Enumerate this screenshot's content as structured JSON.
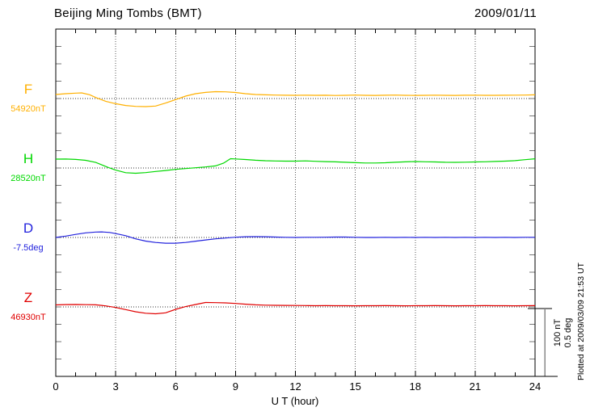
{
  "header": {
    "title": "Beijing Ming Tombs (BMT)",
    "date": "2009/01/11"
  },
  "x_axis": {
    "label": "U T (hour)",
    "tick_labels": [
      "0",
      "3",
      "6",
      "9",
      "12",
      "15",
      "18",
      "21",
      "24"
    ],
    "tick_hours": [
      0,
      3,
      6,
      9,
      12,
      15,
      18,
      21,
      24
    ]
  },
  "scale_bar": {
    "labels": [
      "100 nT",
      "0.5 deg"
    ]
  },
  "footer_note": "Plotted at 2009/03/09 21:53 UT",
  "colors": {
    "frame": "#000000",
    "vgrid": "#555555",
    "baseline": "#333333",
    "edge_ticks": "#777777",
    "scale_bar_line": "#888888"
  },
  "chart_data": {
    "type": "line",
    "title": "Beijing Ming Tombs (BMT)",
    "date": "2009/01/11",
    "xlabel": "U T (hour)",
    "x_range": [
      0,
      24
    ],
    "x_ticks": [
      0,
      3,
      6,
      9,
      12,
      15,
      18,
      21,
      24
    ],
    "grid": "dotted vertical gridlines every 3 h; dotted horizontal baseline per channel",
    "legend_position": "left margin channel labels",
    "scale_reference": {
      "nT": 100,
      "deg": 0.5
    },
    "series": [
      {
        "name": "F",
        "unit": "nT",
        "baseline": 54920,
        "baseline_label": "54920nT",
        "color": "#FFB000",
        "points": [
          [
            0,
            5.8
          ],
          [
            0.5,
            7.0
          ],
          [
            1,
            7.8
          ],
          [
            1.3,
            8.1
          ],
          [
            1.7,
            5.5
          ],
          [
            2,
            1.5
          ],
          [
            2.5,
            -4.0
          ],
          [
            3,
            -7.5
          ],
          [
            3.5,
            -10.0
          ],
          [
            4,
            -11.3
          ],
          [
            4.5,
            -11.6
          ],
          [
            5,
            -10.8
          ],
          [
            5.5,
            -6.5
          ],
          [
            6,
            -1.5
          ],
          [
            6.5,
            3.5
          ],
          [
            7,
            7.0
          ],
          [
            7.5,
            8.8
          ],
          [
            8,
            9.9
          ],
          [
            8.5,
            9.6
          ],
          [
            9,
            8.7
          ],
          [
            9.5,
            7.0
          ],
          [
            10,
            5.8
          ],
          [
            10.5,
            5.3
          ],
          [
            11,
            5.0
          ],
          [
            11.5,
            4.8
          ],
          [
            12,
            4.7
          ],
          [
            12.5,
            4.9
          ],
          [
            13,
            4.6
          ],
          [
            13.5,
            4.8
          ],
          [
            14,
            4.4
          ],
          [
            14.5,
            4.7
          ],
          [
            15,
            5.0
          ],
          [
            15.5,
            4.6
          ],
          [
            16,
            4.5
          ],
          [
            16.5,
            4.8
          ],
          [
            17,
            5.0
          ],
          [
            17.5,
            4.7
          ],
          [
            18,
            4.5
          ],
          [
            18.5,
            4.7
          ],
          [
            19,
            4.9
          ],
          [
            19.5,
            4.6
          ],
          [
            20,
            4.5
          ],
          [
            20.5,
            4.8
          ],
          [
            21,
            4.9
          ],
          [
            21.5,
            4.7
          ],
          [
            22,
            4.6
          ],
          [
            22.5,
            4.8
          ],
          [
            23,
            4.9
          ],
          [
            23.5,
            5.0
          ],
          [
            24,
            5.3
          ]
        ]
      },
      {
        "name": "H",
        "unit": "nT",
        "baseline": 28520,
        "baseline_label": "28520nT",
        "color": "#00D800",
        "points": [
          [
            0,
            12.8
          ],
          [
            0.5,
            12.9
          ],
          [
            1,
            12.3
          ],
          [
            1.5,
            11.0
          ],
          [
            2,
            8.0
          ],
          [
            2.35,
            4.0
          ],
          [
            2.7,
            0.0
          ],
          [
            3,
            -3.0
          ],
          [
            3.5,
            -6.8
          ],
          [
            4,
            -7.6
          ],
          [
            4.5,
            -6.6
          ],
          [
            5,
            -5.0
          ],
          [
            5.5,
            -3.6
          ],
          [
            6,
            -2.0
          ],
          [
            6.5,
            -0.8
          ],
          [
            7,
            0.3
          ],
          [
            7.5,
            1.5
          ],
          [
            8,
            3.0
          ],
          [
            8.4,
            7.0
          ],
          [
            8.75,
            13.4
          ],
          [
            9,
            13.0
          ],
          [
            9.5,
            12.2
          ],
          [
            10,
            11.2
          ],
          [
            10.5,
            10.5
          ],
          [
            11,
            10.1
          ],
          [
            11.5,
            9.9
          ],
          [
            12,
            9.9
          ],
          [
            12.5,
            10.2
          ],
          [
            13,
            9.6
          ],
          [
            13.5,
            9.2
          ],
          [
            14,
            8.8
          ],
          [
            14.5,
            8.3
          ],
          [
            15,
            7.7
          ],
          [
            15.5,
            7.2
          ],
          [
            16,
            7.2
          ],
          [
            16.5,
            7.6
          ],
          [
            17,
            8.2
          ],
          [
            17.5,
            8.8
          ],
          [
            18,
            9.3
          ],
          [
            18.5,
            9.0
          ],
          [
            19,
            8.7
          ],
          [
            19.5,
            8.3
          ],
          [
            20,
            8.1
          ],
          [
            20.5,
            8.4
          ],
          [
            21,
            8.7
          ],
          [
            21.5,
            9.0
          ],
          [
            22,
            9.4
          ],
          [
            22.5,
            9.9
          ],
          [
            23,
            10.6
          ],
          [
            23.5,
            12.0
          ],
          [
            24,
            13.3
          ]
        ]
      },
      {
        "name": "D",
        "unit": "deg",
        "baseline": -7.5,
        "baseline_label": "-7.5deg",
        "color": "#2222DD",
        "points": [
          [
            0,
            0.0
          ],
          [
            0.5,
            0.01
          ],
          [
            1,
            0.022
          ],
          [
            1.5,
            0.033
          ],
          [
            2,
            0.039
          ],
          [
            2.3,
            0.04
          ],
          [
            2.7,
            0.036
          ],
          [
            3,
            0.028
          ],
          [
            3.5,
            0.013
          ],
          [
            4,
            -0.01
          ],
          [
            4.5,
            -0.026
          ],
          [
            5,
            -0.036
          ],
          [
            5.5,
            -0.041
          ],
          [
            6,
            -0.041
          ],
          [
            6.5,
            -0.036
          ],
          [
            7,
            -0.027
          ],
          [
            7.5,
            -0.018
          ],
          [
            8,
            -0.01
          ],
          [
            8.5,
            -0.004
          ],
          [
            9,
            0.002
          ],
          [
            9.5,
            0.005
          ],
          [
            10,
            0.006
          ],
          [
            10.5,
            0.005
          ],
          [
            11,
            0.003
          ],
          [
            11.5,
            0.001
          ],
          [
            12,
            0.0
          ],
          [
            12.5,
            0.001
          ],
          [
            13,
            0.001
          ],
          [
            13.5,
            0.002
          ],
          [
            14,
            0.003
          ],
          [
            14.5,
            0.003
          ],
          [
            15,
            0.001
          ],
          [
            15.5,
            0.0
          ],
          [
            16,
            0.0
          ],
          [
            16.5,
            0.001
          ],
          [
            17,
            0.0
          ],
          [
            17.5,
            0.001
          ],
          [
            18,
            0.0
          ],
          [
            18.5,
            0.001
          ],
          [
            19,
            0.0
          ],
          [
            19.5,
            0.001
          ],
          [
            20,
            0.0
          ],
          [
            20.5,
            0.001
          ],
          [
            21,
            0.0
          ],
          [
            21.5,
            0.001
          ],
          [
            22,
            0.0
          ],
          [
            22.5,
            0.001
          ],
          [
            23,
            0.0
          ],
          [
            23.5,
            0.001
          ],
          [
            24,
            0.001
          ]
        ]
      },
      {
        "name": "Z",
        "unit": "nT",
        "baseline": 46930,
        "baseline_label": "46930nT",
        "color": "#E00000",
        "points": [
          [
            0,
            2.9
          ],
          [
            0.5,
            3.4
          ],
          [
            1,
            3.5
          ],
          [
            1.5,
            3.3
          ],
          [
            2,
            3.0
          ],
          [
            2.5,
            1.5
          ],
          [
            3,
            -0.8
          ],
          [
            3.5,
            -3.8
          ],
          [
            4,
            -7.0
          ],
          [
            4.5,
            -9.1
          ],
          [
            5,
            -9.9
          ],
          [
            5.5,
            -8.5
          ],
          [
            6,
            -3.5
          ],
          [
            6.5,
            0.5
          ],
          [
            7,
            3.5
          ],
          [
            7.5,
            6.4
          ],
          [
            8,
            6.2
          ],
          [
            8.5,
            5.8
          ],
          [
            9,
            5.0
          ],
          [
            9.5,
            4.0
          ],
          [
            10,
            3.0
          ],
          [
            10.5,
            2.6
          ],
          [
            11,
            2.3
          ],
          [
            11.5,
            2.2
          ],
          [
            12,
            2.1
          ],
          [
            12.5,
            2.0
          ],
          [
            13,
            1.8
          ],
          [
            13.5,
            1.9
          ],
          [
            14,
            1.7
          ],
          [
            14.5,
            1.8
          ],
          [
            15,
            1.6
          ],
          [
            15.5,
            1.8
          ],
          [
            16,
            1.7
          ],
          [
            16.5,
            1.9
          ],
          [
            17,
            1.7
          ],
          [
            17.5,
            1.6
          ],
          [
            18,
            1.8
          ],
          [
            18.5,
            1.7
          ],
          [
            19,
            1.9
          ],
          [
            19.5,
            1.7
          ],
          [
            20,
            1.6
          ],
          [
            20.5,
            1.8
          ],
          [
            21,
            1.7
          ],
          [
            21.5,
            1.9
          ],
          [
            22,
            1.7
          ],
          [
            22.5,
            1.8
          ],
          [
            23,
            1.6
          ],
          [
            23.5,
            1.8
          ],
          [
            24,
            1.9
          ]
        ]
      }
    ]
  }
}
